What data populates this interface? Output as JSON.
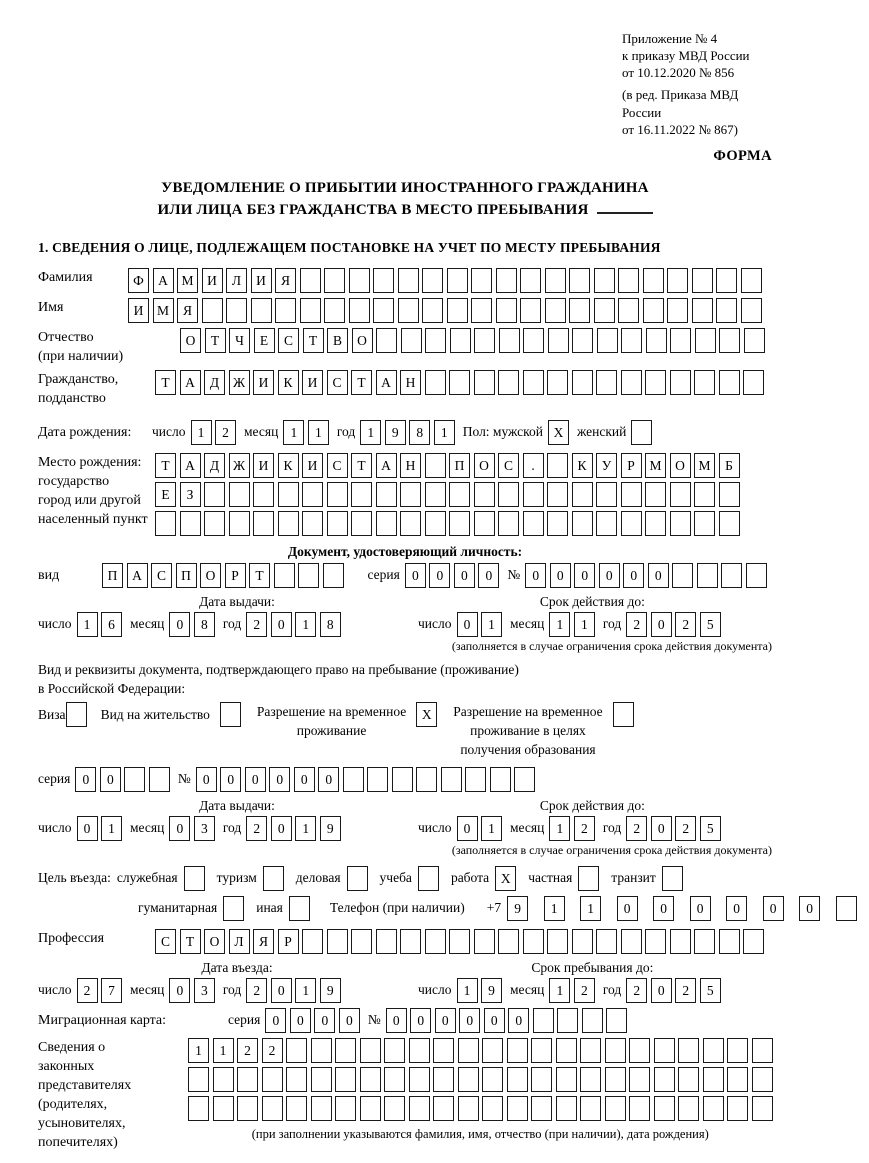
{
  "header": {
    "ref1": "Приложение № 4",
    "ref2": "к приказу МВД России",
    "ref3": "от 10.12.2020 № 856",
    "ref4": "(в ред. Приказа МВД России",
    "ref5": "от 16.11.2022 № 867)",
    "form": "ФОРМА"
  },
  "title": {
    "line1": "УВЕДОМЛЕНИЕ О ПРИБЫТИИ ИНОСТРАННОГО ГРАЖДАНИНА",
    "line2": "ИЛИ ЛИЦА БЕЗ ГРАЖДАНСТВА В МЕСТО ПРЕБЫВАНИЯ"
  },
  "section1_title": "1. СВЕДЕНИЯ О ЛИЦЕ, ПОДЛЕЖАЩЕМ ПОСТАНОВКЕ НА УЧЕТ ПО МЕСТУ ПРЕБЫВАНИЯ",
  "surname": {
    "label": "Фамилия",
    "value": "ФАМИЛИЯ",
    "len": 26
  },
  "firstname": {
    "label": "Имя",
    "value": "ИМЯ",
    "len": 26
  },
  "patronymic": {
    "label1": "Отчество",
    "label2": "(при наличии)",
    "value": "ОТЧЕСТВО",
    "len": 24
  },
  "citizenship": {
    "label1": "Гражданство,",
    "label2": "подданство",
    "value": "ТАДЖИКИСТАН",
    "len": 25
  },
  "birth_date": {
    "label": "Дата рождения:",
    "day_label": "число",
    "day": {
      "value": "12",
      "len": 2
    },
    "month_label": "месяц",
    "month": {
      "value": "11",
      "len": 2
    },
    "year_label": "год",
    "year": {
      "value": "1981",
      "len": 4
    }
  },
  "gender": {
    "male_label": "Пол: мужской",
    "male": "X",
    "female_label": "женский",
    "female": ""
  },
  "birth_place": {
    "label1": "Место рождения:",
    "label2": "государство",
    "label3": "город или другой",
    "label4": "населенный пункт",
    "row1": {
      "value": "ТАДЖИКИСТАН ПОС. КУРМОМБ",
      "len": 24
    },
    "row2": {
      "value": "ЕЗ",
      "len": 24
    },
    "row3": {
      "value": "",
      "len": 24
    }
  },
  "identity_doc": {
    "title": "Документ, удостоверяющий личность:",
    "type_label": "вид",
    "type": {
      "value": "ПАСПОРТ",
      "len": 10
    },
    "series_label": "серия",
    "series": {
      "value": "0000",
      "len": 4
    },
    "number_label": "№",
    "number": {
      "value": "000000",
      "len": 10
    }
  },
  "issue1": {
    "title": "Дата выдачи:",
    "day_label": "число",
    "day": {
      "value": "16",
      "len": 2
    },
    "month_label": "месяц",
    "month": {
      "value": "08",
      "len": 2
    },
    "year_label": "год",
    "year": {
      "value": "2018",
      "len": 4
    }
  },
  "validity1": {
    "title": "Срок действия до:",
    "day_label": "число",
    "day": {
      "value": "01",
      "len": 2
    },
    "month_label": "месяц",
    "month": {
      "value": "11",
      "len": 2
    },
    "year_label": "год",
    "year": {
      "value": "2025",
      "len": 4
    },
    "note": "(заполняется в случае ограничения срока действия документа)"
  },
  "resident_doc": {
    "intro1": "Вид и реквизиты документа, подтверждающего право на пребывание (проживание)",
    "intro2": "в Российской Федерации:",
    "visa_label": "Виза",
    "visa": "",
    "residence_label": "Вид на жительство",
    "residence": "",
    "temp_label1": "Разрешение на временное",
    "temp_label2": "проживание",
    "temp": "X",
    "edu_label1": "Разрешение на временное",
    "edu_label2": "проживание в целях",
    "edu_label3": "получения образования",
    "edu": ""
  },
  "resident_serial": {
    "series_label": "серия",
    "series": {
      "value": "00",
      "len": 4
    },
    "number_label": "№",
    "number": {
      "value": "000000",
      "len": 14
    }
  },
  "issue2": {
    "title": "Дата выдачи:",
    "day_label": "число",
    "day": {
      "value": "01",
      "len": 2
    },
    "month_label": "месяц",
    "month": {
      "value": "03",
      "len": 2
    },
    "year_label": "год",
    "year": {
      "value": "2019",
      "len": 4
    }
  },
  "validity2": {
    "title": "Срок действия до:",
    "day_label": "число",
    "day": {
      "value": "01",
      "len": 2
    },
    "month_label": "месяц",
    "month": {
      "value": "12",
      "len": 2
    },
    "year_label": "год",
    "year": {
      "value": "2025",
      "len": 4
    },
    "note": "(заполняется в случае ограничения срока действия документа)"
  },
  "purpose": {
    "label": "Цель въезда:",
    "options_line1": [
      {
        "label": "служебная",
        "checked": ""
      },
      {
        "label": "туризм",
        "checked": ""
      },
      {
        "label": "деловая",
        "checked": ""
      },
      {
        "label": "учеба",
        "checked": ""
      },
      {
        "label": "работа",
        "checked": "X"
      },
      {
        "label": "частная",
        "checked": ""
      },
      {
        "label": "транзит",
        "checked": ""
      }
    ],
    "options_line2": [
      {
        "label": "гуманитарная",
        "checked": ""
      },
      {
        "label": "иная",
        "checked": ""
      }
    ],
    "phone_label": "Телефон (при наличии)",
    "phone_prefix": "+7",
    "phone": {
      "value": "911000000",
      "len": 10
    }
  },
  "profession": {
    "label": "Профессия",
    "value": "СТОЛЯР",
    "len": 25
  },
  "entry_date": {
    "title": "Дата въезда:",
    "day_label": "число",
    "day": {
      "value": "27",
      "len": 2
    },
    "month_label": "месяц",
    "month": {
      "value": "03",
      "len": 2
    },
    "year_label": "год",
    "year": {
      "value": "2019",
      "len": 4
    }
  },
  "stay_until": {
    "title": "Срок пребывания до:",
    "day_label": "число",
    "day": {
      "value": "19",
      "len": 2
    },
    "month_label": "месяц",
    "month": {
      "value": "12",
      "len": 2
    },
    "year_label": "год",
    "year": {
      "value": "2025",
      "len": 4
    }
  },
  "migration_card": {
    "label": "Миграционная карта:",
    "series_label": "серия",
    "series": {
      "value": "0000",
      "len": 4
    },
    "number_label": "№",
    "number": {
      "value": "000000",
      "len": 10
    }
  },
  "representatives": {
    "label1": "Сведения о",
    "label2": "законных",
    "label3": "представителях",
    "label4": "(родителях,",
    "label5": "усыновителях,",
    "label6": "попечителях)",
    "row1": {
      "value": "1122",
      "len": 24
    },
    "row2": {
      "value": "",
      "len": 24
    },
    "row3": {
      "value": "",
      "len": 24
    },
    "note": "(при заполнении указываются фамилия, имя, отчество (при наличии), дата рождения)"
  }
}
